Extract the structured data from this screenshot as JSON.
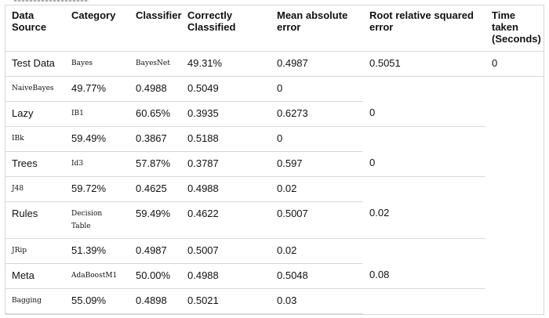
{
  "table": {
    "headers": [
      "Data Source",
      "Category",
      "Classifier",
      "Correctly Classified",
      "Mean absolute error",
      "Root relative squared error",
      "Time taken (Seconds)"
    ],
    "rows": [
      [
        "Test Data",
        "Bayes",
        "BayesNet",
        "49.31%",
        "0.4987",
        "0.5051",
        "0"
      ],
      [
        "NaiveBayes",
        "49.77%",
        "0.4988",
        "0.5049",
        "0",
        "",
        ""
      ],
      [
        "Lazy",
        "IB1",
        "60.65%",
        "0.3935",
        "0.6273",
        "0",
        ""
      ],
      [
        "IBk",
        "59.49%",
        "0.3867",
        "0.5188",
        "0",
        "",
        ""
      ],
      [
        "Trees",
        "Id3",
        "57.87%",
        "0.3787",
        "0.597",
        "0",
        ""
      ],
      [
        "J48",
        "59.72%",
        "0.4625",
        "0.4988",
        "0.02",
        "",
        ""
      ],
      [
        "Rules",
        "Decision Table",
        "59.49%",
        "0.4622",
        "0.5007",
        "0.02",
        ""
      ],
      [
        "JRip",
        "51.39%",
        "0.4987",
        "0.5007",
        "0.02",
        "",
        ""
      ],
      [
        "Meta",
        "AdaBoostM1",
        "50.00%",
        "0.4988",
        "0.5048",
        "0.08",
        ""
      ],
      [
        "Bagging",
        "55.09%",
        "0.4898",
        "0.5021",
        "0.03",
        "",
        ""
      ]
    ]
  }
}
